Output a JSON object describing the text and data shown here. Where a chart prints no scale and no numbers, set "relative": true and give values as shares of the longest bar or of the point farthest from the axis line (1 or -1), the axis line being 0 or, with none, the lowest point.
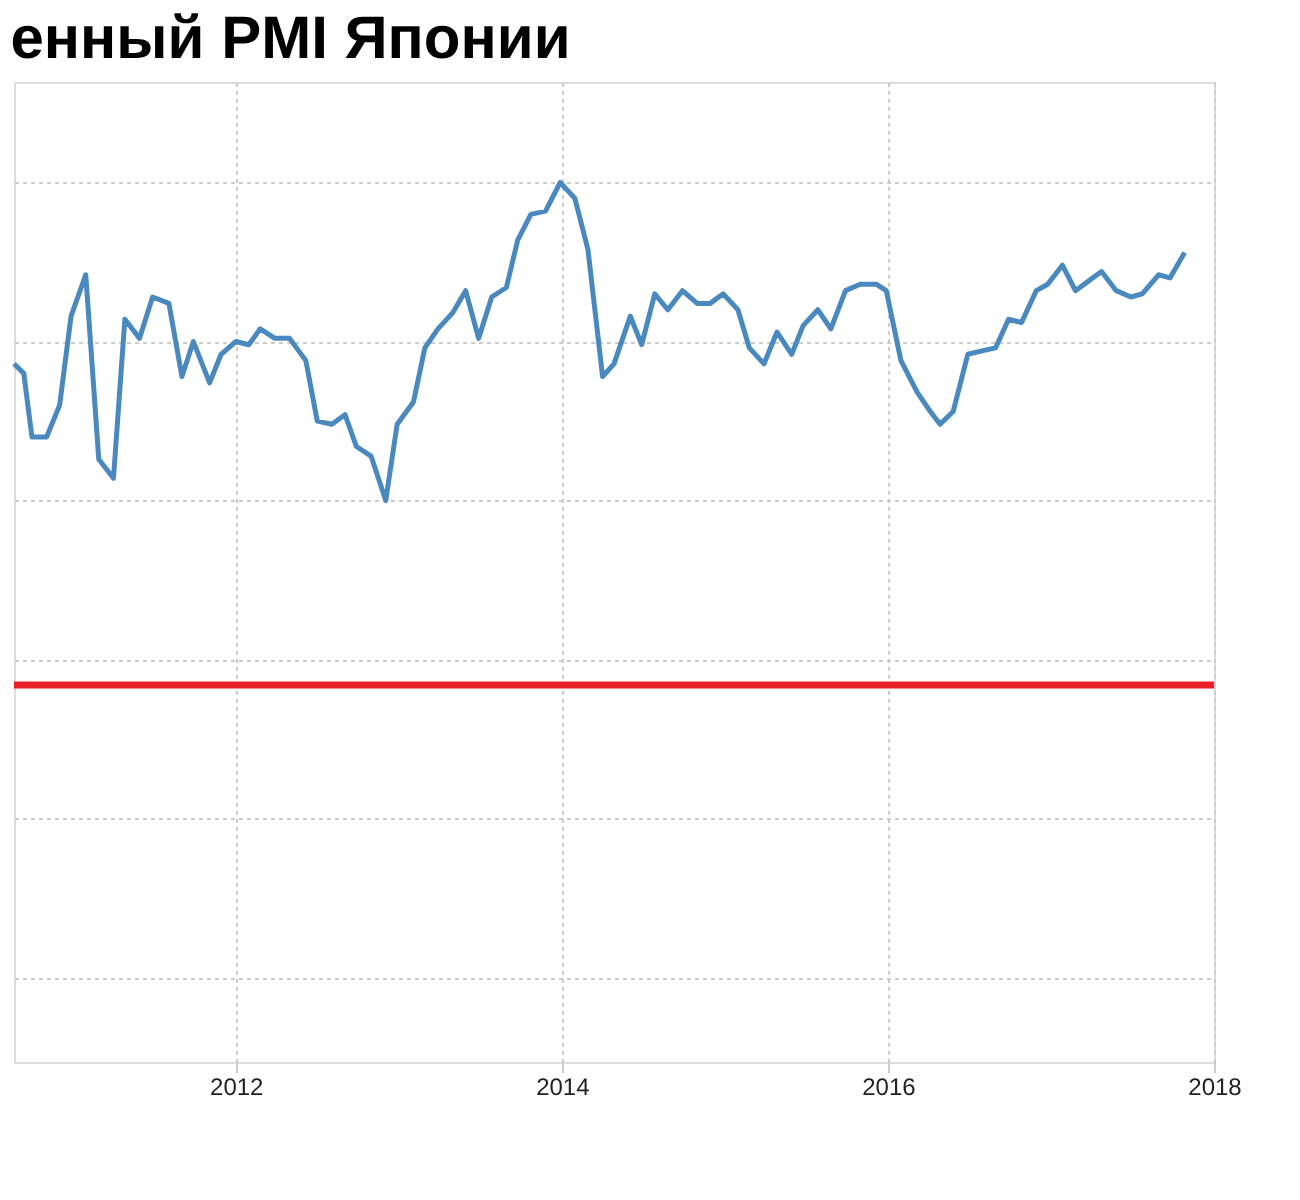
{
  "chart_data": {
    "type": "line",
    "title": "енный PMI Японии",
    "relative": true,
    "grid": true,
    "tick_labels": "x",
    "legend": false,
    "xlim": [
      2010.64,
      2018.0
    ],
    "xticks": [
      2012,
      2014,
      2016,
      2018
    ],
    "series": [
      {
        "color": "#4a89c0",
        "x": [
          2010.64,
          2010.7,
          2010.75,
          2010.84,
          2010.92,
          2010.99,
          2011.08,
          2011.16,
          2011.25,
          2011.32,
          2011.41,
          2011.49,
          2011.59,
          2011.67,
          2011.74,
          2011.84,
          2011.91,
          2012.0,
          2012.08,
          2012.15,
          2012.24,
          2012.33,
          2012.43,
          2012.5,
          2012.59,
          2012.67,
          2012.74,
          2012.83,
          2012.92,
          2012.99,
          2013.09,
          2013.16,
          2013.24,
          2013.33,
          2013.41,
          2013.49,
          2013.57,
          2013.66,
          2013.73,
          2013.81,
          2013.9,
          2013.99,
          2014.08,
          2014.16,
          2014.25,
          2014.32,
          2014.42,
          2014.49,
          2014.57,
          2014.65,
          2014.74,
          2014.83,
          2014.91,
          2014.99,
          2015.08,
          2015.15,
          2015.24,
          2015.32,
          2015.41,
          2015.48,
          2015.57,
          2015.65,
          2015.74,
          2015.83,
          2015.93,
          2015.99,
          2016.08,
          2016.18,
          2016.26,
          2016.32,
          2016.4,
          2016.49,
          2016.57,
          2016.66,
          2016.74,
          2016.82,
          2016.91,
          2016.98,
          2017.07,
          2017.15,
          2017.23,
          2017.31,
          2017.4,
          2017.49,
          2017.56,
          2017.66,
          2017.73,
          2017.82
        ],
        "values": [
          0.43,
          0.4,
          0.2,
          0.2,
          0.3,
          0.58,
          0.71,
          0.13,
          0.07,
          0.57,
          0.51,
          0.64,
          0.62,
          0.39,
          0.5,
          0.37,
          0.46,
          0.5,
          0.49,
          0.54,
          0.51,
          0.51,
          0.44,
          0.25,
          0.24,
          0.27,
          0.17,
          0.14,
          0,
          0.24,
          0.31,
          0.48,
          0.54,
          0.59,
          0.66,
          0.51,
          0.64,
          0.67,
          0.82,
          0.9,
          0.91,
          1,
          0.95,
          0.79,
          0.39,
          0.43,
          0.58,
          0.49,
          0.65,
          0.6,
          0.66,
          0.62,
          0.62,
          0.65,
          0.6,
          0.48,
          0.43,
          0.53,
          0.46,
          0.55,
          0.6,
          0.54,
          0.66,
          0.68,
          0.68,
          0.66,
          0.44,
          0.34,
          0.28,
          0.24,
          0.28,
          0.46,
          0.47,
          0.48,
          0.57,
          0.56,
          0.66,
          0.68,
          0.74,
          0.66,
          0.69,
          0.72,
          0.66,
          0.64,
          0.65,
          0.71,
          0.7,
          0.78
        ]
      }
    ],
    "ref_lines": [
      {
        "axis": "y",
        "value": -0.58,
        "color": "#e8202a"
      }
    ]
  }
}
